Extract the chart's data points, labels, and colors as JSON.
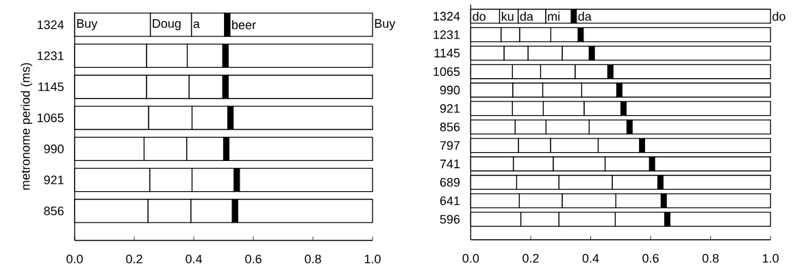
{
  "chart_data": [
    {
      "type": "bar",
      "orientation": "horizontal",
      "stacked": true,
      "ylabel": "metronome period (ms)",
      "categories": [
        "1324",
        "1231",
        "1145",
        "1065",
        "990",
        "921",
        "856"
      ],
      "series": [
        {
          "color": "#ffffff",
          "values": [
            0.254,
            0.241,
            0.241,
            0.248,
            0.233,
            0.252,
            0.246
          ]
        },
        {
          "color": "#ffffff",
          "values": [
            0.138,
            0.137,
            0.143,
            0.146,
            0.143,
            0.142,
            0.144
          ]
        },
        {
          "color": "#ffffff",
          "values": [
            0.111,
            0.119,
            0.113,
            0.12,
            0.124,
            0.141,
            0.139
          ]
        },
        {
          "color": "#000000",
          "values": [
            0.018,
            0.018,
            0.018,
            0.018,
            0.018,
            0.018,
            0.018
          ]
        },
        {
          "color": "#ffffff",
          "values": [
            0.479,
            0.485,
            0.485,
            0.468,
            0.482,
            0.447,
            0.453
          ]
        }
      ],
      "xlim": [
        0,
        1
      ],
      "xticks": [
        {
          "value": 0,
          "label": "0.0"
        },
        {
          "value": 0.2,
          "label": "0.2"
        },
        {
          "value": 0.4,
          "label": "0.4"
        },
        {
          "value": 0.6,
          "label": "0.6"
        },
        {
          "value": 0.8,
          "label": "0.8"
        },
        {
          "value": 1,
          "label": "1.0"
        }
      ],
      "annotations": [
        {
          "text": "Buy",
          "x": 0,
          "y": "1324"
        },
        {
          "text": "Doug",
          "x": 0.254,
          "y": "1324"
        },
        {
          "text": "a",
          "x": 0.392,
          "y": "1324"
        },
        {
          "text": "beer",
          "x": 0.521,
          "y": "1324"
        },
        {
          "text": "Buy",
          "x": 1,
          "y": "1324"
        }
      ]
    },
    {
      "type": "bar",
      "orientation": "horizontal",
      "stacked": true,
      "categories": [
        "1324",
        "1231",
        "1145",
        "1065",
        "990",
        "921",
        "856",
        "797",
        "741",
        "689",
        "641",
        "596"
      ],
      "series": [
        {
          "color": "#ffffff",
          "values": [
            0.096,
            0.101,
            0.111,
            0.139,
            0.14,
            0.139,
            0.148,
            0.159,
            0.142,
            0.153,
            0.162,
            0.167
          ]
        },
        {
          "color": "#ffffff",
          "values": [
            0.062,
            0.062,
            0.08,
            0.094,
            0.1,
            0.103,
            0.103,
            0.107,
            0.133,
            0.141,
            0.143,
            0.127
          ]
        },
        {
          "color": "#ffffff",
          "values": [
            0.092,
            0.104,
            0.114,
            0.115,
            0.13,
            0.136,
            0.144,
            0.159,
            0.173,
            0.178,
            0.179,
            0.188
          ]
        },
        {
          "color": "#ffffff",
          "values": [
            0.085,
            0.091,
            0.09,
            0.109,
            0.117,
            0.123,
            0.126,
            0.138,
            0.148,
            0.152,
            0.151,
            0.165
          ]
        },
        {
          "color": "#000000",
          "values": [
            0.017,
            0.017,
            0.017,
            0.017,
            0.017,
            0.017,
            0.017,
            0.017,
            0.017,
            0.017,
            0.017,
            0.017
          ]
        },
        {
          "color": "#ffffff",
          "values": [
            0.648,
            0.625,
            0.588,
            0.526,
            0.496,
            0.482,
            0.462,
            0.42,
            0.387,
            0.359,
            0.348,
            0.336
          ]
        }
      ],
      "xlim": [
        0,
        1
      ],
      "xticks": [
        {
          "value": 0,
          "label": "0.0"
        },
        {
          "value": 0.2,
          "label": "0.2"
        },
        {
          "value": 0.4,
          "label": "0.4"
        },
        {
          "value": 0.6,
          "label": "0.6"
        },
        {
          "value": 0.8,
          "label": "0.8"
        },
        {
          "value": 1,
          "label": "1.0"
        }
      ],
      "annotations": [
        {
          "text": "do",
          "x": 0,
          "y": "1324"
        },
        {
          "text": "ku",
          "x": 0.096,
          "y": "1324"
        },
        {
          "text": "da",
          "x": 0.158,
          "y": "1324"
        },
        {
          "text": "mi",
          "x": 0.25,
          "y": "1324"
        },
        {
          "text": "da",
          "x": 0.352,
          "y": "1324"
        },
        {
          "text": "do",
          "x": 1,
          "y": "1324"
        }
      ]
    }
  ]
}
